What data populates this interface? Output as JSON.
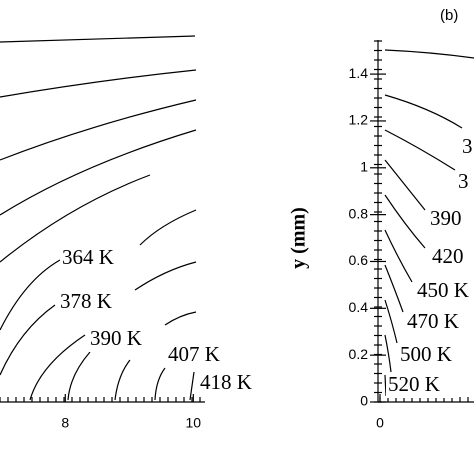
{
  "chart_data": [
    {
      "type": "contour",
      "xlim": [
        6.98,
        10.12
      ],
      "xticks": [
        8,
        10
      ],
      "annotations": [
        "364 K",
        "378 K",
        "390 K",
        "407 K",
        "418 K"
      ]
    },
    {
      "type": "contour",
      "title": "(b)",
      "y_label": "y (mm)",
      "xlim": [
        0,
        0.5
      ],
      "xticks": [
        0
      ],
      "ylim": [
        0,
        1.52
      ],
      "yticks": [
        0,
        0.2,
        0.4,
        0.6,
        0.8,
        1,
        1.2,
        1.4
      ],
      "annotations": [
        "3",
        "3",
        "390",
        "420",
        "450 K",
        "470 K",
        "500 K",
        "520 K"
      ]
    }
  ]
}
